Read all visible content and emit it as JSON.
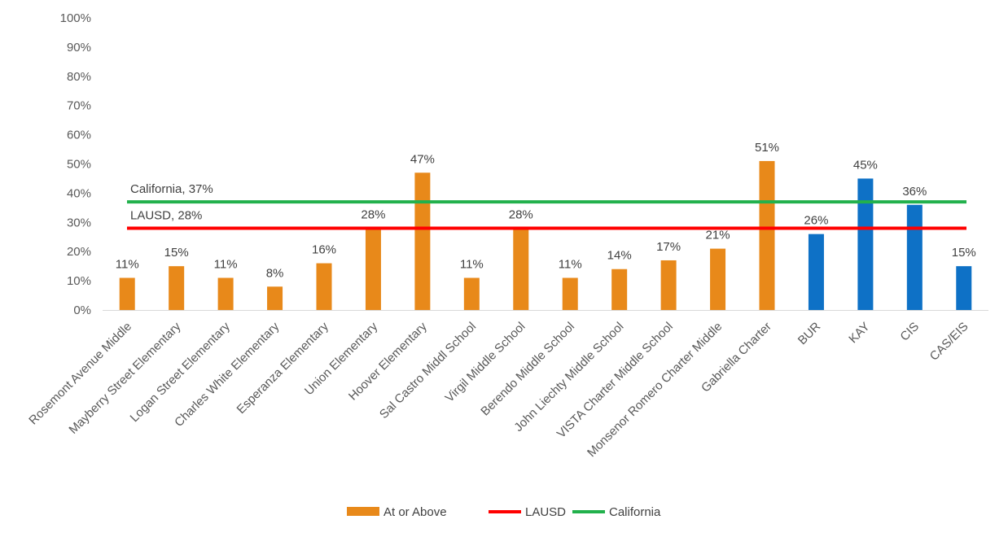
{
  "chart_data": {
    "type": "bar",
    "categories": [
      "Rosemont Avenue Middle",
      "Mayberry Street Elementary",
      "Logan Street Elementary",
      "Charles White Elementary",
      "Esperanza Elementary",
      "Union Elementary",
      "Hoover Elementary",
      "Sal Castro Middl School",
      "Virgil Middle School",
      "Berendo Middle School",
      "John Liechty Middle School",
      "VISTA Charter Middle School",
      "Monsenor Romero Charter Middle",
      "Gabriella Charter",
      "BUR",
      "KAY",
      "CIS",
      "CAS/EIS"
    ],
    "series": [
      {
        "name": "At or Above",
        "values": [
          11,
          15,
          11,
          8,
          16,
          28,
          47,
          11,
          28,
          11,
          14,
          17,
          21,
          51,
          26,
          45,
          36,
          15
        ],
        "data_labels": [
          "11%",
          "15%",
          "11%",
          "8%",
          "16%",
          "28%",
          "47%",
          "11%",
          "28%",
          "11%",
          "14%",
          "17%",
          "21%",
          "51%",
          "26%",
          "45%",
          "36%",
          "15%"
        ],
        "color": "#E8891A",
        "highlight_color": "#0E71C6",
        "highlight_from_index": 14
      }
    ],
    "reference_lines": [
      {
        "name": "LAUSD",
        "value": 28,
        "label": "LAUSD, 28%",
        "color": "#FF0000"
      },
      {
        "name": "California",
        "value": 37,
        "label": "California, 37%",
        "color": "#22B14C"
      }
    ],
    "y_ticks": [
      "0%",
      "10%",
      "20%",
      "30%",
      "40%",
      "50%",
      "60%",
      "70%",
      "80%",
      "90%",
      "100%"
    ],
    "ylim": [
      0,
      100
    ],
    "title": "",
    "xlabel": "",
    "ylabel": "",
    "grid": false,
    "legend": {
      "position": "bottom",
      "entries": [
        {
          "label": "At or Above",
          "color": "#E8891A",
          "marker": "box"
        },
        {
          "label": "LAUSD",
          "color": "#FF0000",
          "marker": "line"
        },
        {
          "label": "California",
          "color": "#22B14C",
          "marker": "line"
        }
      ]
    }
  }
}
